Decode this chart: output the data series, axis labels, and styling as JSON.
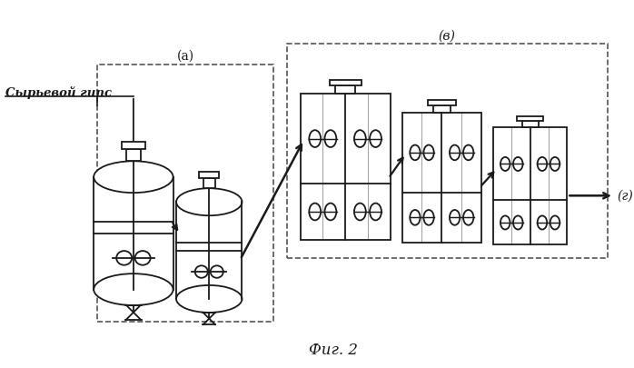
{
  "title": "Фиг. 2",
  "label_a": "(а)",
  "label_v": "(в)",
  "label_g": "(г)",
  "label_raw": "Сырьевой гипс",
  "bg_color": "#ffffff",
  "line_color": "#1a1a1a",
  "dashed_color": "#555555"
}
